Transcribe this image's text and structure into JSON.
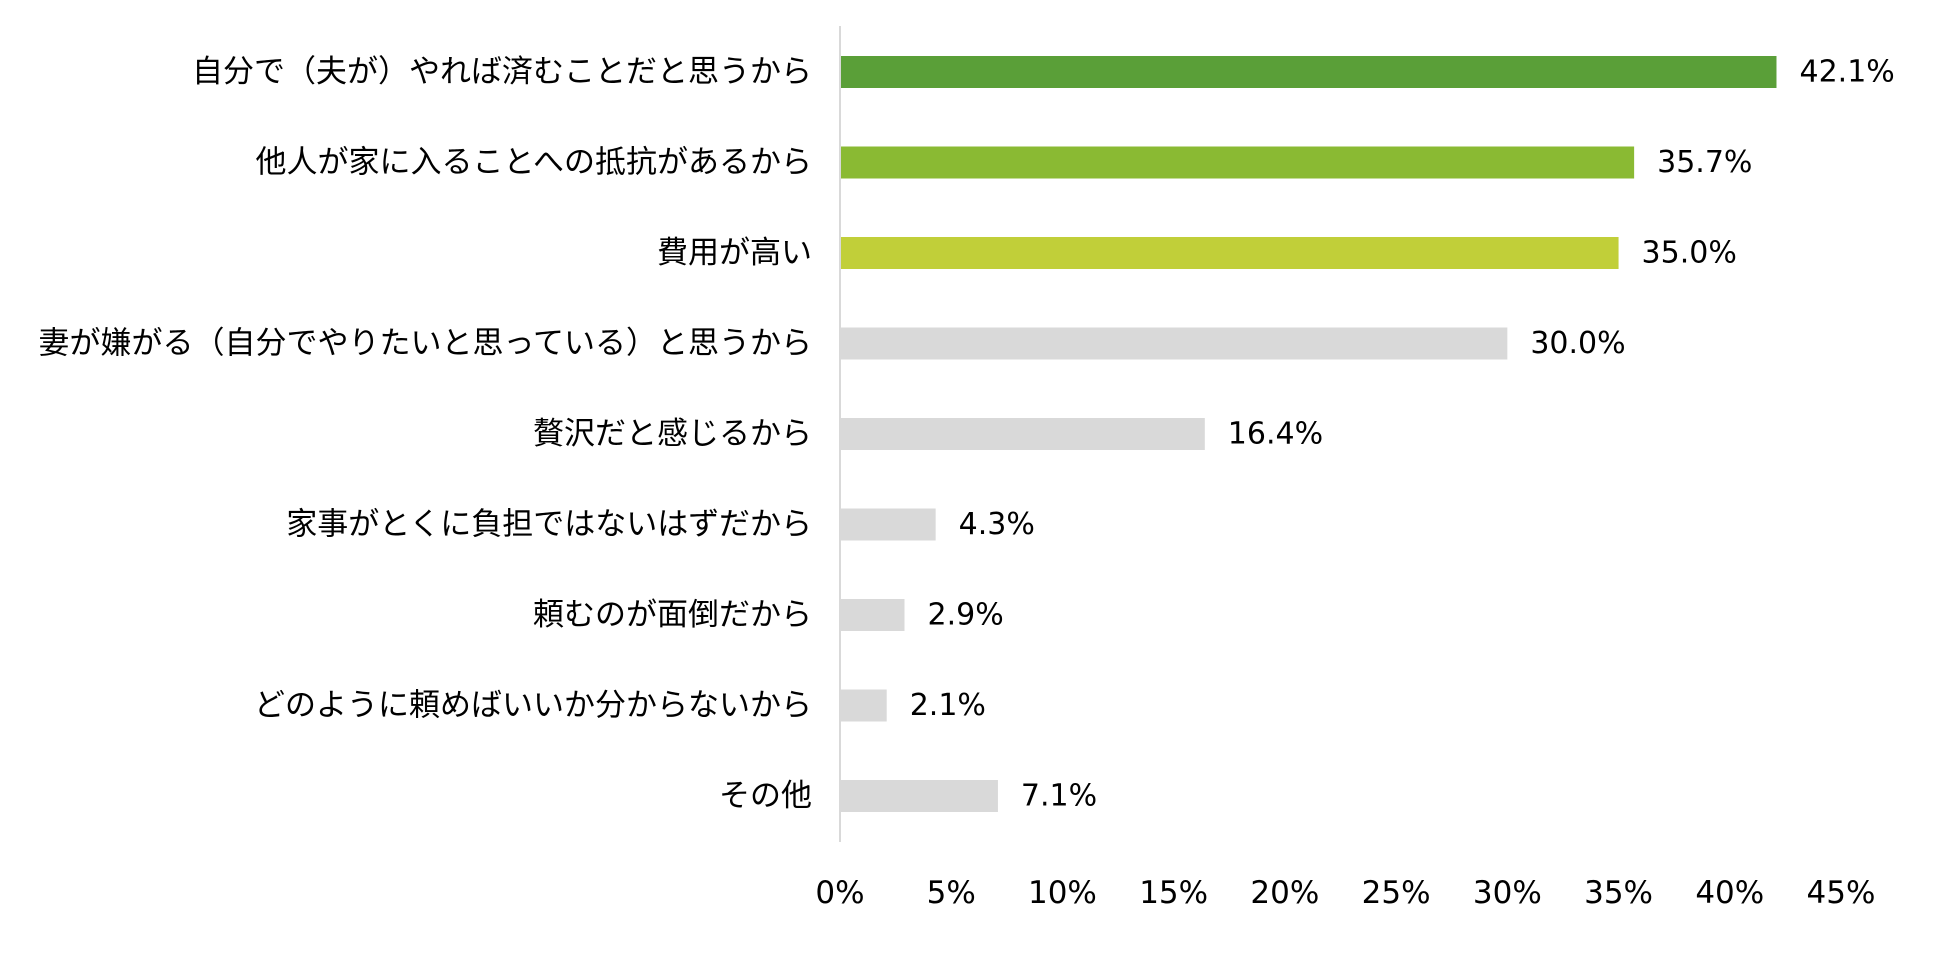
{
  "chart_data": {
    "type": "bar",
    "orientation": "horizontal",
    "title": "",
    "xlabel": "",
    "ylabel": "",
    "xlim": [
      0,
      45
    ],
    "grid": false,
    "legend": "none",
    "categories": [
      "自分で（夫が）やれば済むことだと思うから",
      "他人が家に入ることへの抵抗があるから",
      "費用が高い",
      "妻が嫌がる（自分でやりたいと思っている）と思うから",
      "贅沢だと感じるから",
      "家事がとくに負担ではないはずだから",
      "頼むのが面倒だから",
      "どのように頼めばいいか分からないから",
      "その他"
    ],
    "values": [
      42.1,
      35.7,
      35.0,
      30.0,
      16.4,
      4.3,
      2.9,
      2.1,
      7.1
    ],
    "value_labels": [
      "42.1%",
      "35.7%",
      "35.0%",
      "30.0%",
      "16.4%",
      "4.3%",
      "2.9%",
      "2.1%",
      "7.1%"
    ],
    "bar_colors": [
      "#5a9f38",
      "#8aba33",
      "#c1cf39",
      "#d9d9d9",
      "#d9d9d9",
      "#d9d9d9",
      "#d9d9d9",
      "#d9d9d9",
      "#d9d9d9"
    ],
    "x_ticks": [
      0,
      5,
      10,
      15,
      20,
      25,
      30,
      35,
      40,
      45
    ],
    "x_tick_labels": [
      "0%",
      "5%",
      "10%",
      "15%",
      "20%",
      "25%",
      "30%",
      "35%",
      "40%",
      "45%"
    ]
  },
  "colors": {
    "axis": "#d9d9d9",
    "text": "#000000"
  }
}
